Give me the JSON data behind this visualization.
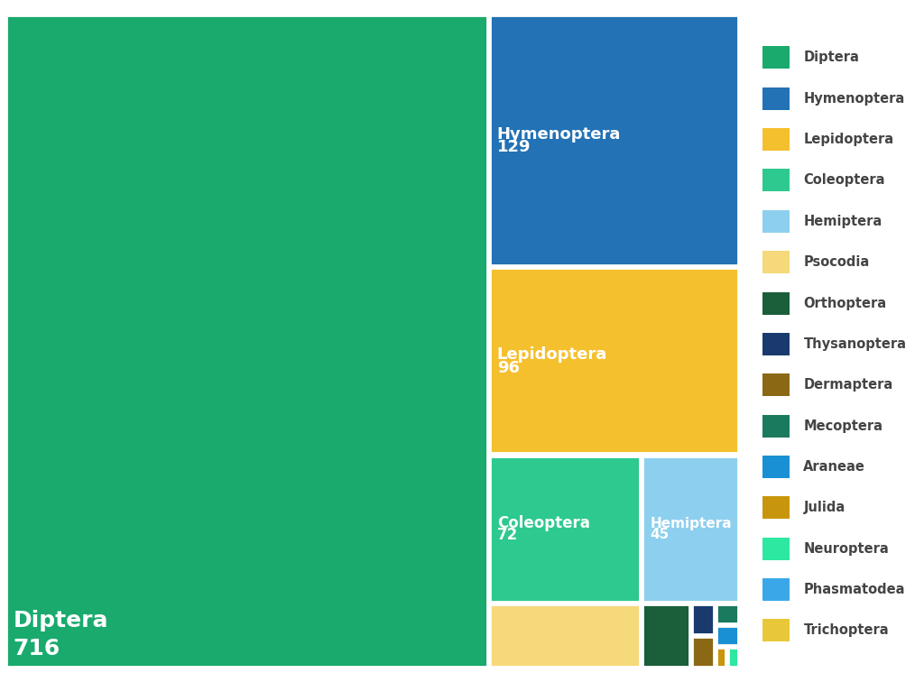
{
  "labels": [
    "Diptera",
    "Hymenoptera",
    "Lepidoptera",
    "Coleoptera",
    "Hemiptera",
    "Psocodia",
    "Orthoptera",
    "Thysanoptera",
    "Dermaptera",
    "Mecoptera",
    "Araneae",
    "Julida",
    "Neuroptera",
    "Phasmatodea",
    "Trichoptera"
  ],
  "values": [
    716,
    129,
    96,
    72,
    45,
    30,
    20,
    15,
    12,
    10,
    9,
    8,
    7,
    6,
    5
  ],
  "colors": [
    "#1aaa6e",
    "#2272b5",
    "#f5c02e",
    "#2dc98e",
    "#8dcfee",
    "#f5d97a",
    "#1a5e3a",
    "#1a3a6e",
    "#8b6914",
    "#1a7a5e",
    "#1a90d4",
    "#c8960c",
    "#2de8a0",
    "#3aa8e8",
    "#e8c838"
  ],
  "bg_color": "#ffffff",
  "edge_color": "#ffffff",
  "text_color": "#ffffff",
  "legend_text_color": "#444444"
}
